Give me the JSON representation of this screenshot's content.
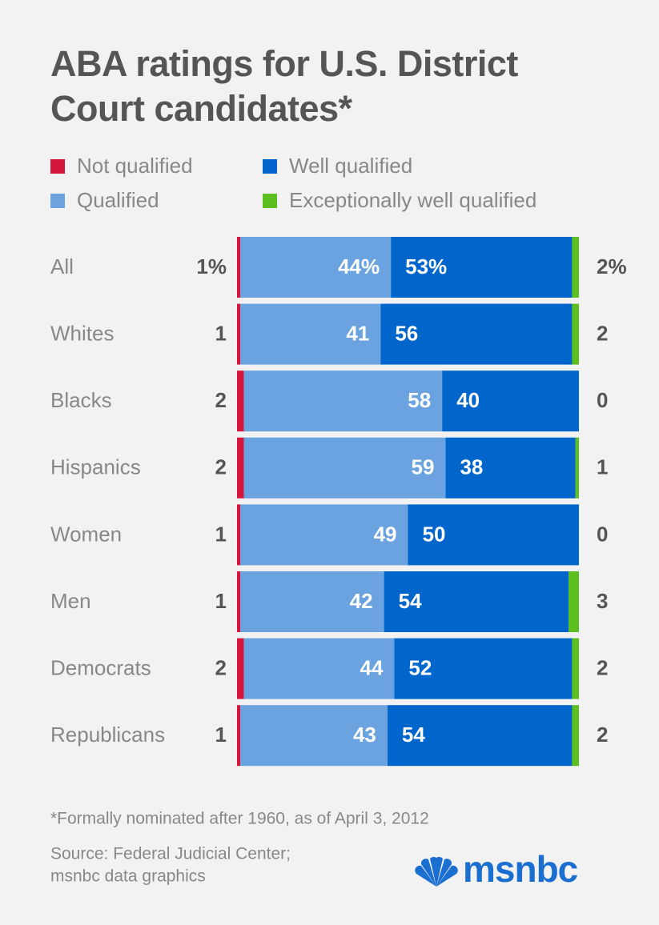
{
  "chart_data": {
    "type": "stacked-bar",
    "orientation": "horizontal",
    "title": "ABA ratings for U.S. District Court candidates*",
    "categories": [
      "All",
      "Whites",
      "Blacks",
      "Hispanics",
      "Women",
      "Men",
      "Democrats",
      "Republicans"
    ],
    "xlim": [
      0,
      100
    ],
    "series": [
      {
        "name": "Not qualified",
        "color": "#d4163c",
        "values": [
          1,
          1,
          2,
          2,
          1,
          1,
          2,
          1
        ],
        "value_labels": [
          "1%",
          "1",
          "2",
          "2",
          "1",
          "1",
          "2",
          "1"
        ]
      },
      {
        "name": "Qualified",
        "color": "#6aa3e0",
        "values": [
          44,
          41,
          58,
          59,
          49,
          42,
          44,
          43
        ],
        "value_labels": [
          "44%",
          "41",
          "58",
          "59",
          "49",
          "42",
          "44",
          "43"
        ]
      },
      {
        "name": "Well qualified",
        "color": "#0066cc",
        "values": [
          53,
          56,
          40,
          38,
          50,
          54,
          52,
          54
        ],
        "value_labels": [
          "53%",
          "56",
          "40",
          "38",
          "50",
          "54",
          "52",
          "54"
        ]
      },
      {
        "name": "Exceptionally well qualified",
        "color": "#5cbf1f",
        "values": [
          2,
          2,
          0,
          1,
          0,
          3,
          2,
          2
        ],
        "value_labels": [
          "2%",
          "2",
          "0",
          "1",
          "0",
          "3",
          "2",
          "2"
        ]
      }
    ],
    "footnote": "*Formally nominated after 1960, as of April 3, 2012",
    "source": [
      "Source: Federal Judicial Center;",
      "msnbc data graphics"
    ],
    "brand": "msnbc"
  }
}
